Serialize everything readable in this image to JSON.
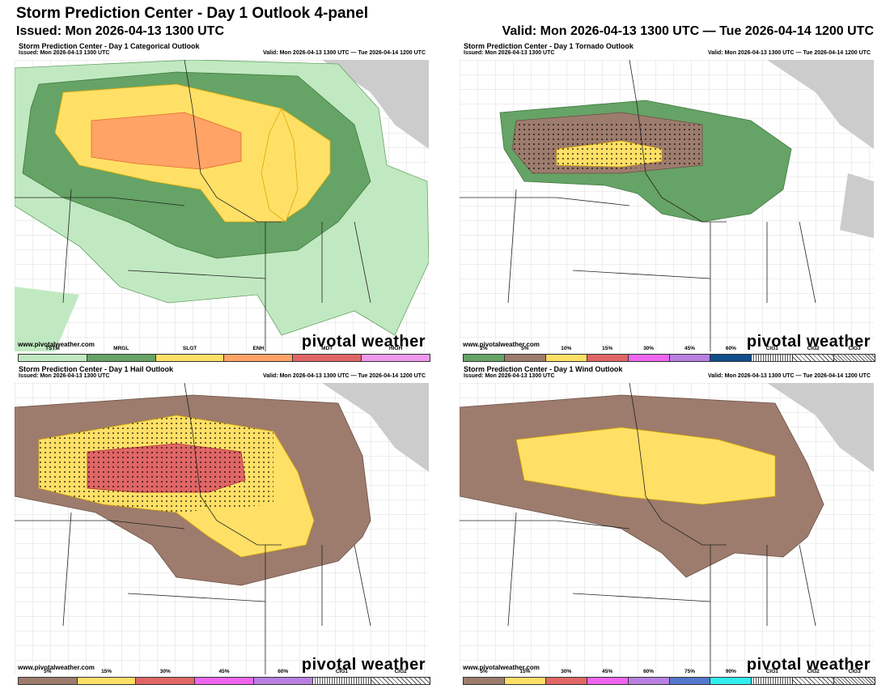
{
  "header": {
    "title": "Storm Prediction Center - Day 1 Outlook 4-panel",
    "issued": "Issued: Mon 2026-04-13 1300 UTC",
    "valid": "Valid: Mon 2026-04-13 1300 UTC — Tue 2026-04-14 1200 UTC"
  },
  "panels": {
    "categorical": {
      "title": "Storm Prediction Center - Day 1 Categorical Outlook",
      "issued": "Issued: Mon 2026-04-13 1300 UTC",
      "valid": "Valid: Mon 2026-04-13 1300 UTC — Tue 2026-04-14 1200 UTC",
      "site": "www.pivotalweather.com",
      "brand": "pivotal weather",
      "legend": [
        {
          "label": "TSTM",
          "color": "#c1e9c1"
        },
        {
          "label": "MRGL",
          "color": "#66a366"
        },
        {
          "label": "SLGT",
          "color": "#ffe066"
        },
        {
          "label": "ENH",
          "color": "#ffa366"
        },
        {
          "label": "MDT",
          "color": "#e06666"
        },
        {
          "label": "HIGH",
          "color": "#ee99ee"
        }
      ]
    },
    "tornado": {
      "title": "Storm Prediction Center - Day 1 Tornado Outlook",
      "issued": "Issued: Mon 2026-04-13 1300 UTC",
      "valid": "Valid: Mon 2026-04-13 1300 UTC — Tue 2026-04-14 1200 UTC",
      "site": "www.pivotalweather.com",
      "brand": "pivotal weather",
      "legend": [
        {
          "label": "2%",
          "color": "#66a366"
        },
        {
          "label": "5%",
          "color": "#9d7c6d"
        },
        {
          "label": "10%",
          "color": "#ffe066"
        },
        {
          "label": "15%",
          "color": "#e06666"
        },
        {
          "label": "30%",
          "color": "#ee66ee"
        },
        {
          "label": "45%",
          "color": "#b880e0"
        },
        {
          "label": "60%",
          "color": "#104e8b"
        },
        {
          "label": "CIG1",
          "color": "hatch1"
        },
        {
          "label": "CIG2",
          "color": "hatch2"
        },
        {
          "label": "CIG3",
          "color": "hatch3"
        }
      ]
    },
    "hail": {
      "title": "Storm Prediction Center - Day 1 Hail Outlook",
      "issued": "Issued: Mon 2026-04-13 1300 UTC",
      "valid": "Valid: Mon 2026-04-13 1300 UTC — Tue 2026-04-14 1200 UTC",
      "site": "www.pivotalweather.com",
      "brand": "pivotal weather",
      "legend": [
        {
          "label": "5%",
          "color": "#9d7c6d"
        },
        {
          "label": "15%",
          "color": "#ffe066"
        },
        {
          "label": "30%",
          "color": "#e06666"
        },
        {
          "label": "45%",
          "color": "#ee66ee"
        },
        {
          "label": "60%",
          "color": "#b880e0"
        },
        {
          "label": "CIG1",
          "color": "hatch1"
        },
        {
          "label": "CIG2",
          "color": "hatch2"
        }
      ]
    },
    "wind": {
      "title": "Storm Prediction Center - Day 1 Wind Outlook",
      "issued": "Issued: Mon 2026-04-13 1300 UTC",
      "valid": "Valid: Mon 2026-04-13 1300 UTC — Tue 2026-04-14 1200 UTC",
      "site": "www.pivotalweather.com",
      "brand": "pivotal weather",
      "legend": [
        {
          "label": "5%",
          "color": "#9d7c6d"
        },
        {
          "label": "15%",
          "color": "#ffe066"
        },
        {
          "label": "30%",
          "color": "#e06666"
        },
        {
          "label": "45%",
          "color": "#ee66ee"
        },
        {
          "label": "60%",
          "color": "#b880e0"
        },
        {
          "label": "75%",
          "color": "#5577cc"
        },
        {
          "label": "90%",
          "color": "#33eeee"
        },
        {
          "label": "CIG1",
          "color": "hatch1"
        },
        {
          "label": "CIG2",
          "color": "hatch2"
        },
        {
          "label": "CIG3",
          "color": "hatch3"
        }
      ]
    }
  }
}
